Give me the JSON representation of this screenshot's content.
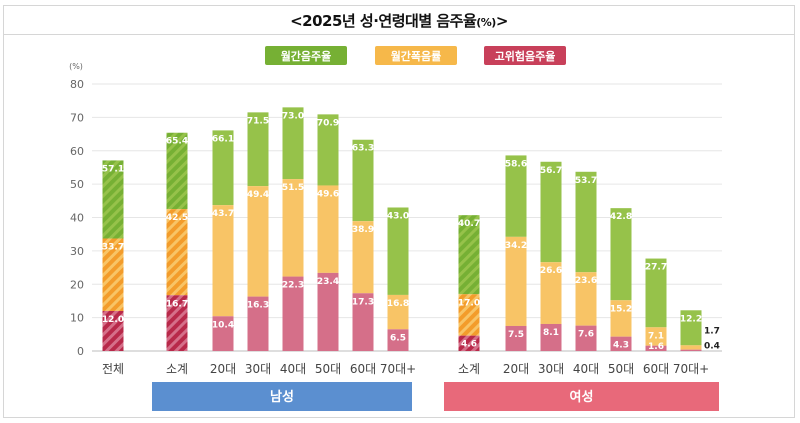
{
  "title": "<2025년 성·연령대별 음주율",
  "title_unit": "(%)",
  "title_close": ">",
  "colors": {
    "monthly": "#76b034",
    "binge": "#f6b84a",
    "highrisk": "#c8405a",
    "monthly_light": "#96c24a",
    "binge_light": "#f8c466",
    "highrisk_light": "#d56f89",
    "male_band": "#5b8fd0",
    "female_band": "#e8697a"
  },
  "chart_data": {
    "type": "bar",
    "ylabel": "(%)",
    "ylim": [
      0,
      80
    ],
    "yticks": [
      0,
      10,
      20,
      30,
      40,
      50,
      60,
      70,
      80
    ],
    "grid": true,
    "legend": {
      "placement": "top-center",
      "entries": [
        "월간음주율",
        "월간폭음률",
        "고위험음주율"
      ]
    },
    "groups": [
      {
        "label": "전체",
        "band": "",
        "categories": [
          "전체"
        ]
      },
      {
        "label": "남성",
        "band": "male",
        "categories": [
          "소계",
          "20대",
          "30대",
          "40대",
          "50대",
          "60대",
          "70대+"
        ]
      },
      {
        "label": "여성",
        "band": "female",
        "categories": [
          "소계",
          "20대",
          "30대",
          "40대",
          "50대",
          "60대",
          "70대+"
        ]
      }
    ],
    "series": [
      {
        "name": "월간음주율",
        "values": [
          57.1,
          65.4,
          66.1,
          71.5,
          73.0,
          70.9,
          63.3,
          43.0,
          40.7,
          58.6,
          56.7,
          53.7,
          42.8,
          27.7,
          12.2
        ]
      },
      {
        "name": "월간폭음률",
        "values": [
          33.7,
          42.5,
          43.7,
          49.4,
          51.5,
          49.6,
          38.9,
          16.8,
          17.0,
          34.2,
          26.6,
          23.6,
          15.2,
          7.1,
          1.7
        ]
      },
      {
        "name": "고위험음주율",
        "values": [
          12.0,
          16.7,
          10.4,
          16.3,
          22.3,
          23.4,
          17.3,
          6.5,
          4.6,
          7.5,
          8.1,
          7.6,
          4.3,
          1.6,
          0.4
        ]
      }
    ],
    "hatched": [
      0,
      1,
      8
    ]
  }
}
